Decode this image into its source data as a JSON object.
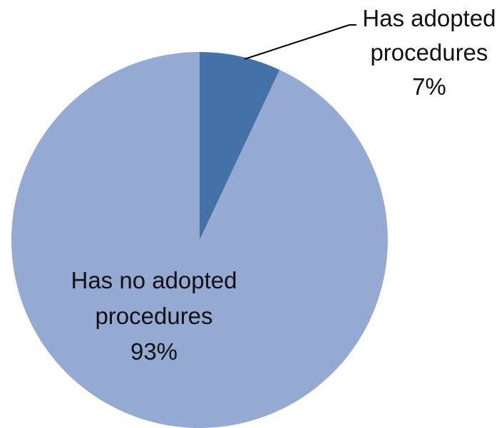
{
  "chart_data": {
    "type": "pie",
    "title": "",
    "start_angle_deg": 0,
    "direction": "clockwise",
    "slices": [
      {
        "label_lines": [
          "Has adopted",
          "procedures"
        ],
        "percent_label": "7%",
        "value": 7,
        "color": "#4472a8"
      },
      {
        "label_lines": [
          "Has no adopted",
          "procedures"
        ],
        "percent_label": "93%",
        "value": 93,
        "color": "#94aad3"
      }
    ],
    "legend": "none",
    "leader_line_color": "#000000"
  }
}
